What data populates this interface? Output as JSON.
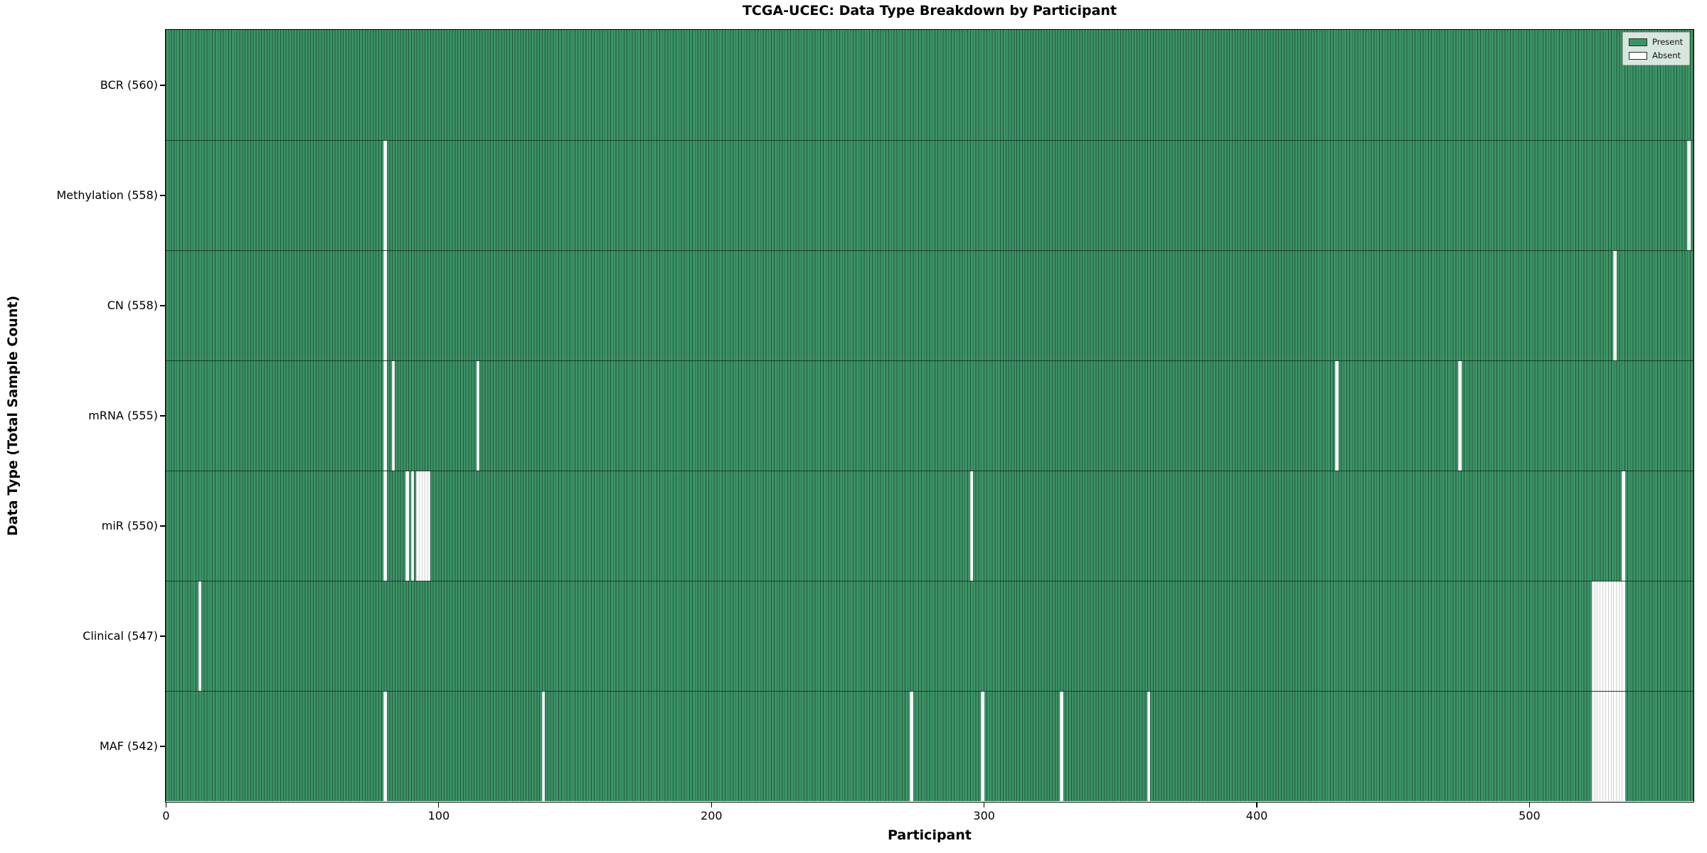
{
  "chart_data": {
    "type": "heatmap",
    "title": "TCGA-UCEC: Data Type Breakdown by Participant",
    "xlabel": "Participant",
    "ylabel": "Data Type (Total Sample Count)",
    "x_range": [
      0,
      560
    ],
    "x_ticks": [
      0,
      100,
      200,
      300,
      400,
      500
    ],
    "x_tick_labels": [
      "0",
      "100",
      "200",
      "300",
      "400",
      "500"
    ],
    "grid": false,
    "legend_position": "upper right",
    "legend": [
      {
        "label": "Present",
        "color": "#3c9467"
      },
      {
        "label": "Absent",
        "color": "#ffffff"
      }
    ],
    "rows": [
      {
        "label": "BCR (560)",
        "data_type": "BCR",
        "total": 560,
        "absent_participants": []
      },
      {
        "label": "Methylation (558)",
        "data_type": "Methylation",
        "total": 558,
        "absent_participants": [
          80,
          558
        ]
      },
      {
        "label": "CN (558)",
        "data_type": "CN",
        "total": 558,
        "absent_participants": [
          80,
          531
        ]
      },
      {
        "label": "mRNA (555)",
        "data_type": "mRNA",
        "total": 555,
        "absent_participants": [
          80,
          83,
          114,
          429,
          474
        ]
      },
      {
        "label": "miR (550)",
        "data_type": "miR",
        "total": 550,
        "absent_participants": [
          80,
          88,
          90,
          92,
          93,
          94,
          95,
          96,
          295,
          534
        ]
      },
      {
        "label": "Clinical (547)",
        "data_type": "Clinical",
        "total": 547,
        "absent_participants": [
          12,
          523,
          524,
          525,
          526,
          527,
          528,
          529,
          530,
          531,
          532,
          533,
          534
        ]
      },
      {
        "label": "MAF (542)",
        "data_type": "MAF",
        "total": 542,
        "absent_participants": [
          80,
          138,
          273,
          299,
          328,
          360,
          523,
          524,
          525,
          526,
          527,
          528,
          529,
          530,
          531,
          532,
          533,
          534
        ]
      }
    ],
    "colors": {
      "present": "#3c9467",
      "absent": "#ffffff",
      "cell_edge": "rgba(0,0,0,0.42)",
      "absent_edge": "rgba(0,0,0,0.18)",
      "row_separator": "rgba(0,0,0,0.55)"
    }
  }
}
